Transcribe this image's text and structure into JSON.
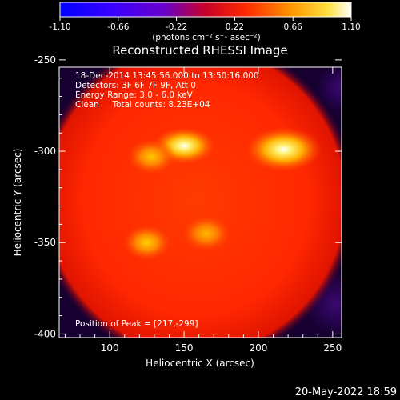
{
  "chart_data": {
    "type": "heatmap",
    "title": "Reconstructed RHESSI Image",
    "xlabel": "Heliocentric X (arcsec)",
    "ylabel": "Heliocentric Y (arcsec)",
    "xlim": [
      66,
      256
    ],
    "ylim": [
      -402,
      -254
    ],
    "xticks": [
      100,
      150,
      200,
      250
    ],
    "yticks": [
      -250,
      -300,
      -350,
      -400
    ],
    "colorbar": {
      "label": "(photons cm⁻² s⁻¹ asec⁻²)",
      "min": -1.1,
      "max": 1.1,
      "ticks": [
        "-1.10",
        "-0.66",
        "-0.22",
        "0.22",
        "0.66",
        "1.10"
      ]
    },
    "annotations": {
      "time_range": "18-Dec-2014 13:45:56.000 to 13:50:16.000",
      "detectors": "Detectors: 3F 6F 7F 9F, Att 0",
      "energy_range": "Energy Range: 3.0 - 6.0 keV",
      "method_counts": "Clean     Total counts: 8.23E+04",
      "peak": "Position of Peak = [217,-299]"
    },
    "peak": {
      "x": 217,
      "y": -299
    },
    "sources": [
      {
        "x": 217,
        "y": -299,
        "level": 1.0
      },
      {
        "x": 150,
        "y": -297,
        "level": 0.78
      },
      {
        "x": 128,
        "y": -303,
        "level": 0.55
      },
      {
        "x": 125,
        "y": -350,
        "level": 0.6
      },
      {
        "x": 165,
        "y": -345,
        "level": 0.45
      }
    ]
  },
  "footer_timestamp": "20-May-2022 18:59"
}
